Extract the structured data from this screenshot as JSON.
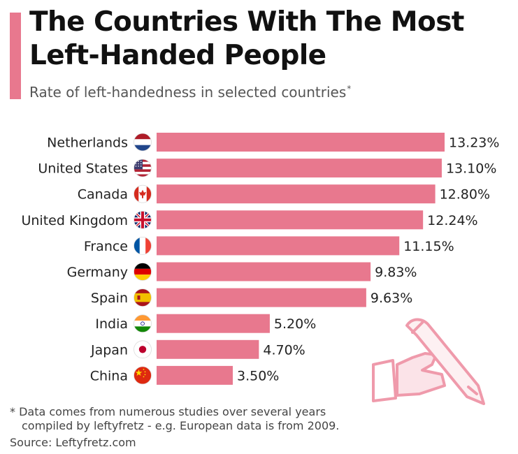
{
  "title": "The Countries With The Most Left-Handed People",
  "subtitle": "Rate of left-handedness in selected countries",
  "subtitle_marker": "*",
  "footnote": {
    "line1": "* Data comes from numerous studies over several years",
    "line2": "compiled by leftyfretz - e.g. European data is from 2009."
  },
  "source": "Source: Leftyfretz.com",
  "colors": {
    "accent": "#e8788e",
    "bar": "#e8788e"
  },
  "chart_data": {
    "type": "bar",
    "orientation": "horizontal",
    "categories": [
      "Netherlands",
      "United States",
      "Canada",
      "United Kingdom",
      "France",
      "Germany",
      "Spain",
      "India",
      "Japan",
      "China"
    ],
    "values": [
      13.23,
      13.1,
      12.8,
      12.24,
      11.15,
      9.83,
      9.63,
      5.2,
      4.7,
      3.5
    ],
    "value_labels": [
      "13.23%",
      "13.10%",
      "12.80%",
      "12.24%",
      "11.15%",
      "9.83%",
      "9.63%",
      "5.20%",
      "4.70%",
      "3.50%"
    ],
    "flags": [
      "netherlands-flag",
      "united-states-flag",
      "canada-flag",
      "united-kingdom-flag",
      "france-flag",
      "germany-flag",
      "spain-flag",
      "india-flag",
      "japan-flag",
      "china-flag"
    ],
    "xlim": [
      0,
      13.23
    ],
    "grid": false
  }
}
